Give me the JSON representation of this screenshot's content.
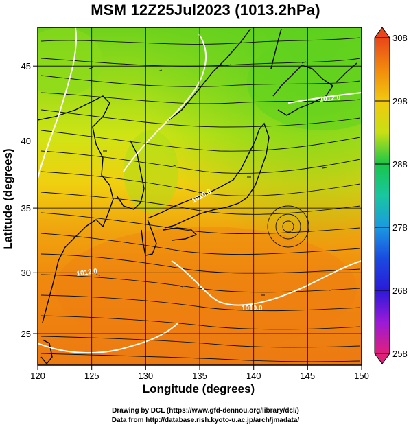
{
  "title": "MSM 12Z25Jul2023 (1013.2hPa)",
  "axes": {
    "xlabel": "Longitude (degrees)",
    "ylabel": "Latitude  (degrees)",
    "xlim": [
      120,
      150
    ],
    "ylim": [
      22.4,
      47.6
    ],
    "xticks": [
      "120",
      "125",
      "130",
      "135",
      "140",
      "145",
      "150"
    ],
    "yticks": [
      "25",
      "30",
      "35",
      "40",
      "45"
    ]
  },
  "colorbar": {
    "labels": [
      "308",
      "298",
      "288",
      "278",
      "268",
      "258"
    ],
    "range": [
      258,
      308
    ],
    "colors": [
      "#e0207a",
      "#7a1ad8",
      "#1a1ae0",
      "#1a8ae0",
      "#19c6c6",
      "#19c64a",
      "#5fd31c",
      "#c8e014",
      "#f2c90f",
      "#f28a0c",
      "#e8461a"
    ]
  },
  "credits": {
    "line1": "Drawing by DCL (https://www.gfd-dennou.org/library/dcl/)",
    "line2": "Data from http://database.rish.kyoto-u.ac.jp/arch/jmadata/"
  },
  "contour_labels": [
    "1012.0",
    "1010.0",
    "1012.0",
    "1010.0"
  ]
}
